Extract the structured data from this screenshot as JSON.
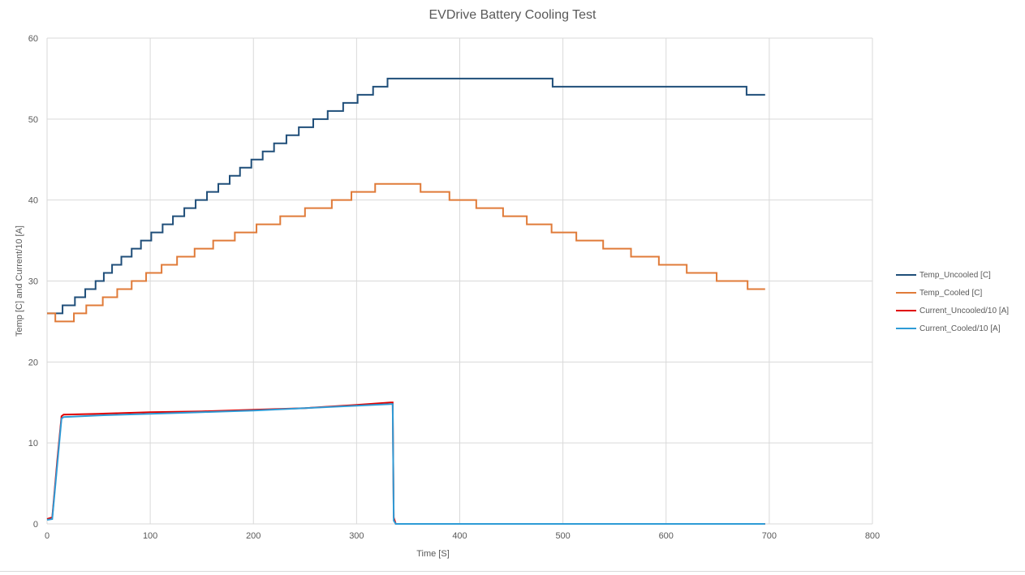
{
  "chart_data": {
    "type": "line",
    "title": "EVDrive Battery Cooling Test",
    "xlabel": "Time [S]",
    "ylabel": "Temp [C] and Current/10 [A]",
    "xlim": [
      0,
      800
    ],
    "ylim": [
      0,
      60
    ],
    "x_ticks": [
      0,
      100,
      200,
      300,
      400,
      500,
      600,
      700,
      800
    ],
    "y_ticks": [
      0,
      10,
      20,
      30,
      40,
      50,
      60
    ],
    "grid": true,
    "legend_position": "right",
    "series": [
      {
        "name": "Temp_Uncooled [C]",
        "color": "#1f4e79",
        "step": true,
        "points": [
          [
            0,
            26
          ],
          [
            15,
            27
          ],
          [
            27,
            28
          ],
          [
            37,
            29
          ],
          [
            47,
            30
          ],
          [
            55,
            31
          ],
          [
            63,
            32
          ],
          [
            72,
            33
          ],
          [
            82,
            34
          ],
          [
            91,
            35
          ],
          [
            101,
            36
          ],
          [
            112,
            37
          ],
          [
            122,
            38
          ],
          [
            133,
            39
          ],
          [
            144,
            40
          ],
          [
            155,
            41
          ],
          [
            166,
            42
          ],
          [
            177,
            43
          ],
          [
            187,
            44
          ],
          [
            198,
            45
          ],
          [
            209,
            46
          ],
          [
            220,
            47
          ],
          [
            232,
            48
          ],
          [
            244,
            49
          ],
          [
            258,
            50
          ],
          [
            272,
            51
          ],
          [
            287,
            52
          ],
          [
            301,
            53
          ],
          [
            316,
            54
          ],
          [
            330,
            55
          ],
          [
            490,
            54
          ],
          [
            678,
            53
          ],
          [
            696,
            53
          ]
        ]
      },
      {
        "name": "Temp_Cooled [C]",
        "color": "#e07b39",
        "step": true,
        "points": [
          [
            0,
            26
          ],
          [
            8,
            25
          ],
          [
            26,
            26
          ],
          [
            38,
            27
          ],
          [
            54,
            28
          ],
          [
            68,
            29
          ],
          [
            82,
            30
          ],
          [
            96,
            31
          ],
          [
            111,
            32
          ],
          [
            126,
            33
          ],
          [
            143,
            34
          ],
          [
            161,
            35
          ],
          [
            182,
            36
          ],
          [
            203,
            37
          ],
          [
            226,
            38
          ],
          [
            250,
            39
          ],
          [
            276,
            40
          ],
          [
            295,
            41
          ],
          [
            318,
            42
          ],
          [
            362,
            41
          ],
          [
            390,
            40
          ],
          [
            416,
            39
          ],
          [
            442,
            38
          ],
          [
            465,
            37
          ],
          [
            489,
            36
          ],
          [
            513,
            35
          ],
          [
            539,
            34
          ],
          [
            566,
            33
          ],
          [
            593,
            32
          ],
          [
            620,
            31
          ],
          [
            649,
            30
          ],
          [
            679,
            29
          ],
          [
            696,
            29
          ]
        ]
      },
      {
        "name": "Current_Uncooled/10 [A]",
        "color": "#e00000",
        "step": false,
        "points": [
          [
            0,
            0.6
          ],
          [
            5,
            0.8
          ],
          [
            10,
            8
          ],
          [
            14,
            13.3
          ],
          [
            16,
            13.5
          ],
          [
            50,
            13.6
          ],
          [
            100,
            13.8
          ],
          [
            150,
            13.9
          ],
          [
            200,
            14.1
          ],
          [
            250,
            14.3
          ],
          [
            300,
            14.7
          ],
          [
            333,
            15
          ],
          [
            335,
            15
          ],
          [
            336,
            0.8
          ],
          [
            338,
            0
          ],
          [
            696,
            0
          ]
        ]
      },
      {
        "name": "Current_Cooled/10 [A]",
        "color": "#2e9bd6",
        "step": false,
        "points": [
          [
            0,
            0.5
          ],
          [
            5,
            0.6
          ],
          [
            10,
            7.5
          ],
          [
            14,
            13
          ],
          [
            16,
            13.2
          ],
          [
            50,
            13.4
          ],
          [
            100,
            13.6
          ],
          [
            150,
            13.8
          ],
          [
            200,
            14
          ],
          [
            250,
            14.3
          ],
          [
            300,
            14.6
          ],
          [
            333,
            14.8
          ],
          [
            335,
            14.8
          ],
          [
            336,
            0.4
          ],
          [
            338,
            0
          ],
          [
            696,
            0
          ]
        ]
      }
    ]
  }
}
